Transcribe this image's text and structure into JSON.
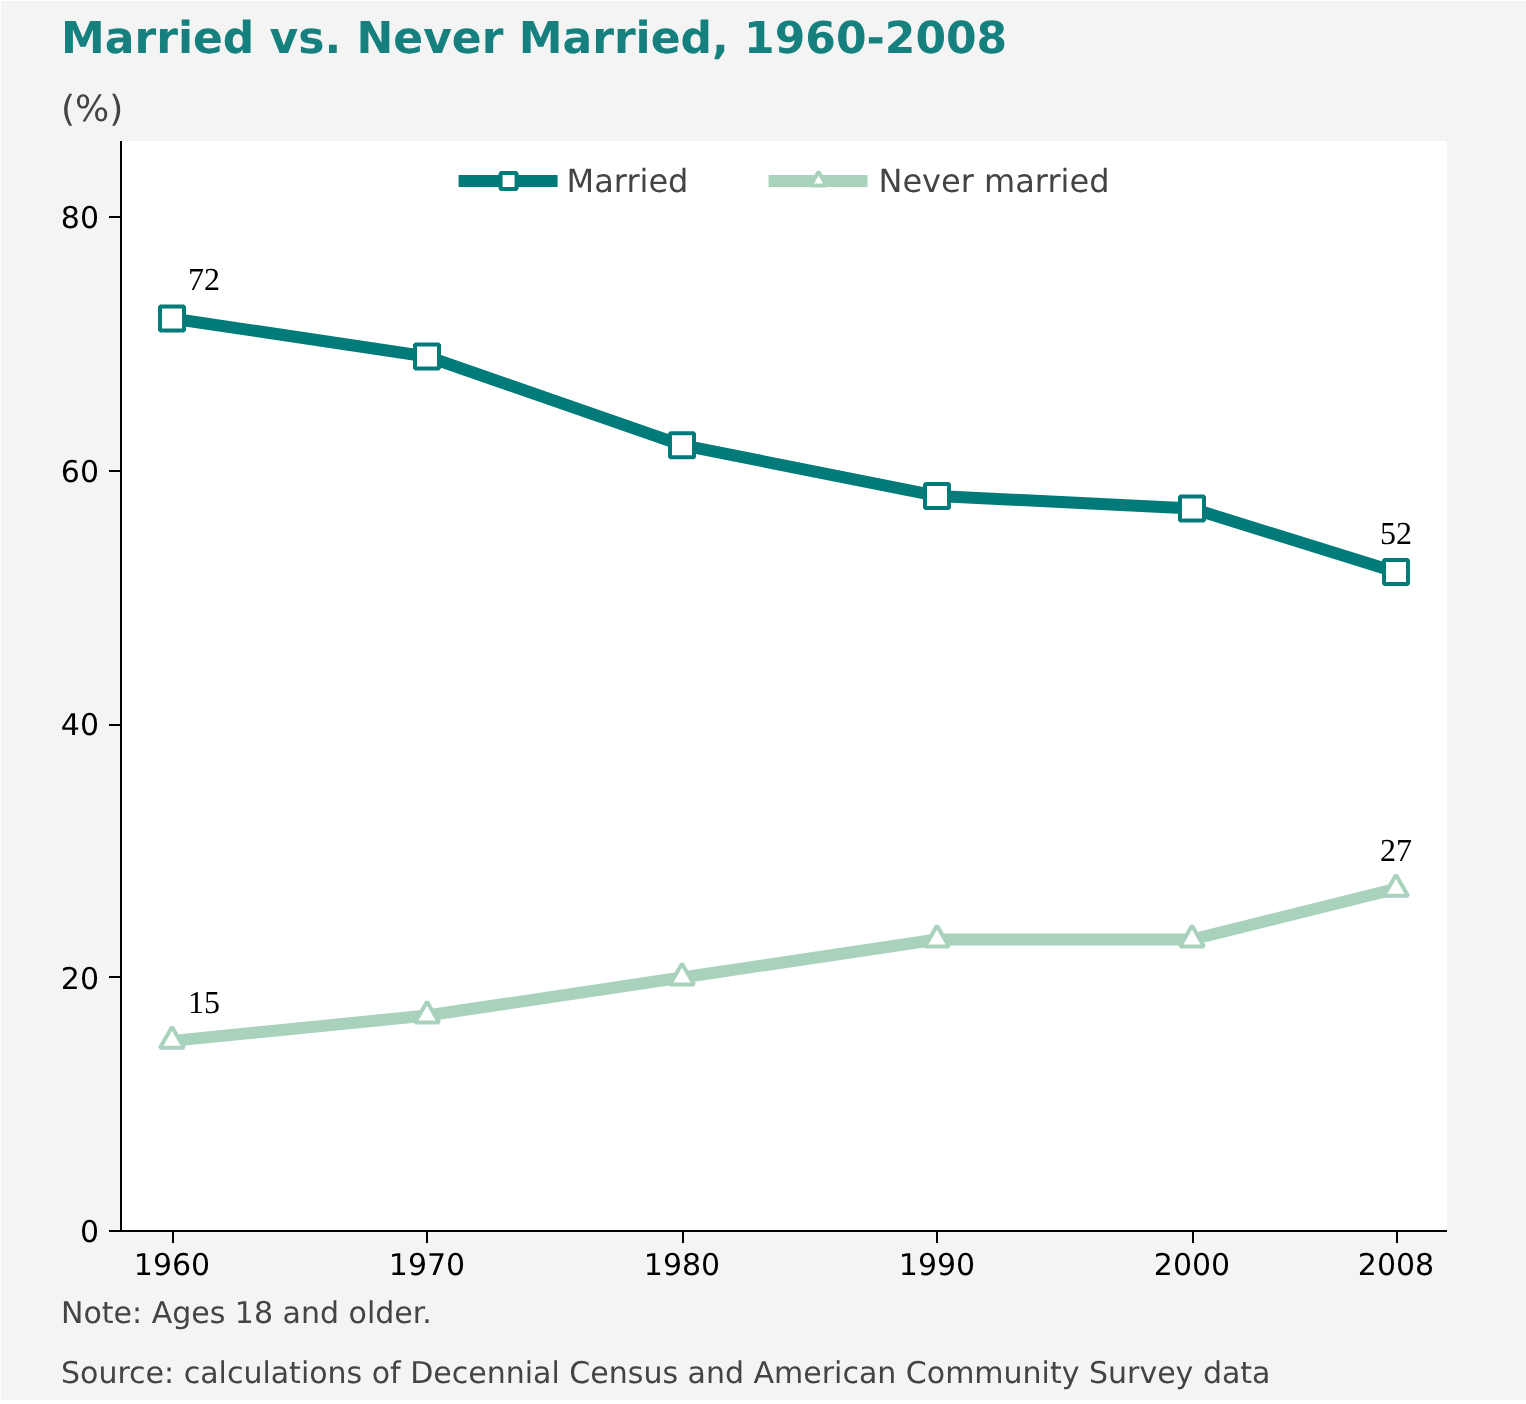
{
  "chart_data": {
    "type": "line",
    "title": "Married vs. Never Married, 1960-2008",
    "ylabel": "(%)",
    "x": [
      1960,
      1970,
      1980,
      1990,
      2000,
      2008
    ],
    "series": [
      {
        "name": "Married",
        "color": "#007b79",
        "marker": "square",
        "values": [
          72,
          69,
          62,
          58,
          57,
          52
        ],
        "value_labels": [
          "72",
          null,
          null,
          null,
          null,
          "52"
        ]
      },
      {
        "name": "Never married",
        "color": "#a9d2bd",
        "marker": "triangle",
        "values": [
          15,
          17,
          20,
          23,
          23,
          27
        ],
        "value_labels": [
          "15",
          null,
          null,
          null,
          null,
          "27"
        ]
      }
    ],
    "xlim": [
      1958,
      2010
    ],
    "xticks": [
      1960,
      1970,
      1980,
      1990,
      2000,
      2008
    ],
    "ylim": [
      0,
      86
    ],
    "yticks": [
      0,
      20,
      40,
      60,
      80
    ],
    "grid": false,
    "legend": "top",
    "annotations": [
      "Note: Ages 18 and older.",
      "Source: calculations of Decennial Census and American Community Survey data"
    ]
  }
}
